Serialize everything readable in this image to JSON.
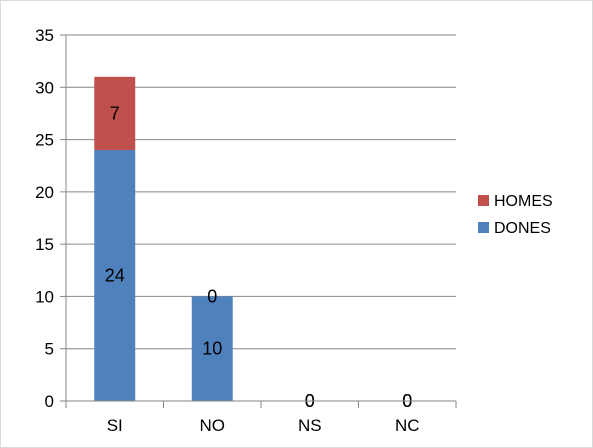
{
  "chart_data": {
    "type": "bar",
    "stacked": true,
    "categories": [
      "SI",
      "NO",
      "NS",
      "NC"
    ],
    "series": [
      {
        "name": "DONES",
        "values": [
          24,
          10,
          0,
          0
        ],
        "color": "#4f81bd"
      },
      {
        "name": "HOMES",
        "values": [
          7,
          0,
          0,
          0
        ],
        "color": "#c0504d"
      }
    ],
    "ylim": [
      0,
      35
    ],
    "yticks": [
      0,
      5,
      10,
      15,
      20,
      25,
      30,
      35
    ],
    "grid": true,
    "legend_position": "right",
    "legend_order": [
      "HOMES",
      "DONES"
    ],
    "data_labels": true,
    "title": "",
    "xlabel": "",
    "ylabel": ""
  }
}
